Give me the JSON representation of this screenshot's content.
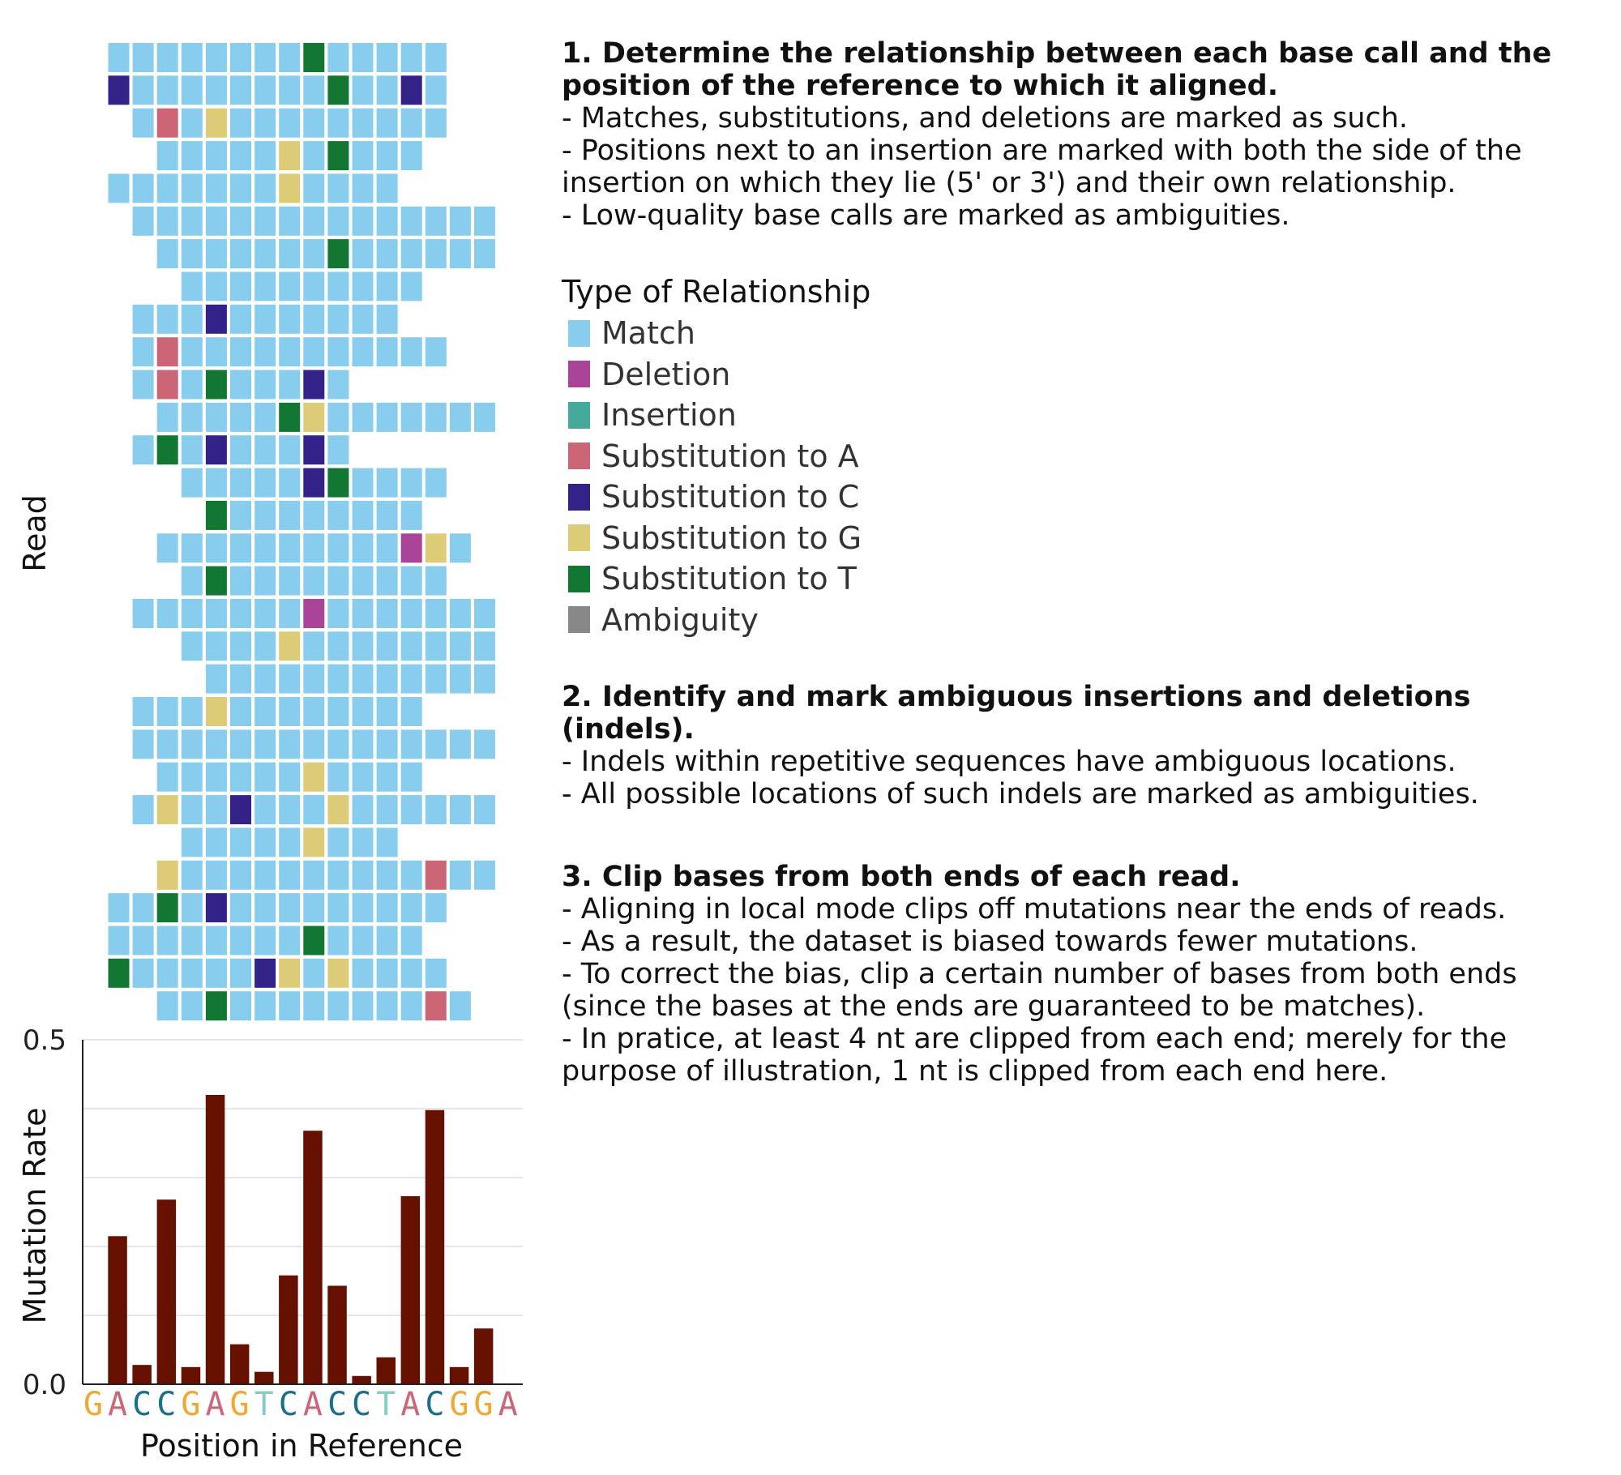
{
  "colors": {
    "Match": "#88ccee",
    "Deletion": "#aa4499",
    "Insertion": "#44aa99",
    "Substitution to A": "#cc6677",
    "Substitution to C": "#332288",
    "Substitution to G": "#ddcc77",
    "Substitution to T": "#117733",
    "Ambiguity": "#888888",
    "bar": "#661100",
    "base_A": "#cc6677",
    "base_C": "#1a6f8a",
    "base_G": "#f0a830",
    "base_T": "#88ccc8"
  },
  "steps": [
    {
      "title": "1. Determine the relationship between each base call and the position of the reference to which it aligned.",
      "lines": [
        "- Matches, substitutions, and deletions are marked as such.",
        "- Positions next to an insertion are marked with both the side of the insertion on which they lie (5' or 3') and their own relationship.",
        "- Low-quality base calls are marked as ambiguities."
      ]
    },
    {
      "title": "2. Identify and mark ambiguous insertions and deletions (indels).",
      "lines": [
        "- Indels within repetitive sequences have ambiguous locations.",
        "- All possible locations of such indels are marked as ambiguities."
      ]
    },
    {
      "title": "3. Clip bases from both ends of each read.",
      "lines": [
        "- Aligning in local mode clips off mutations near the ends of reads.",
        "- As a result, the dataset is biased towards fewer mutations.",
        "- To correct the bias, clip a certain number of bases from both ends (since the bases at the ends are guaranteed to be matches).",
        "- In pratice, at least 4 nt are clipped from each end; merely for the purpose of illustration, 1 nt is clipped from each end here."
      ]
    }
  ],
  "legend": {
    "title": "Type of Relationship",
    "items": [
      "Match",
      "Deletion",
      "Insertion",
      "Substitution to A",
      "Substitution to C",
      "Substitution to G",
      "Substitution to T",
      "Ambiguity"
    ]
  },
  "chart_data": [
    {
      "type": "heatmap",
      "ylabel": "Read",
      "positions": 16,
      "codes": {
        "M": "Match",
        "D": "Deletion",
        "I": "Insertion",
        "A": "Substitution to A",
        "C": "Substitution to C",
        "G": "Substitution to G",
        "T": "Substitution to T",
        "N": "Ambiguity",
        ".": "none"
      },
      "reads": [
        "MMMMMMMMTMMMMM..",
        "CMMMMMMMMTMMCM..",
        ".MAMGMMMMMMMMM..",
        "..MMMMMGMTMMM...",
        "MMMMMMMGMMMM....",
        ".MMMMMMMMMMMMMMM",
        "..MMMMMMMTMMMMMM",
        "...MMMMMMMMMM...",
        ".MMMCMMMMMMM....",
        ".MAMMMMMMMMMMM..",
        ".MAMTMMMCM......",
        "..MMMMMTGMMMMMMM",
        ".MTMCMMMCM......",
        "...MMMMMCTMMMM..",
        "....TMMMMMMMM...",
        "..MMMMMMMMMMDGM.",
        "...MTMMMMMMMMM..",
        ".MMMMMMMDMMMMMMM",
        "...MMMMGMMMMMMMM",
        "....MMMMMMMMMMMM",
        ".MMMGMMMMMMMM...",
        ".MMMMMMMMMMMMMMM",
        "..MMMMMMGMMMM...",
        ".MGMMCMMMGMMMMMM",
        "...MMMMMGMMM....",
        "..GMMMMMMMMMMAMM",
        "MMTMCMMMMMMMMM..",
        "MMMMMMMMTMMMM...",
        "TMMMMMCGMGMMMM..",
        "..MMTMMMMMMMMAM."
      ]
    },
    {
      "type": "bar",
      "ylabel": "Mutation Rate",
      "xlabel": "Position in Reference",
      "ylim": [
        0.0,
        0.5
      ],
      "yticks": [
        "0.0",
        "0.5"
      ],
      "categories": [
        "G",
        "A",
        "C",
        "C",
        "G",
        "A",
        "G",
        "T",
        "C",
        "A",
        "C",
        "C",
        "T",
        "A",
        "C",
        "G",
        "G",
        "A"
      ],
      "values": [
        null,
        0.215,
        0.028,
        0.268,
        0.025,
        0.42,
        0.058,
        0.018,
        0.158,
        0.368,
        0.143,
        0.012,
        0.039,
        0.273,
        0.398,
        0.025,
        0.081,
        null
      ],
      "grid": "horizontal"
    }
  ]
}
